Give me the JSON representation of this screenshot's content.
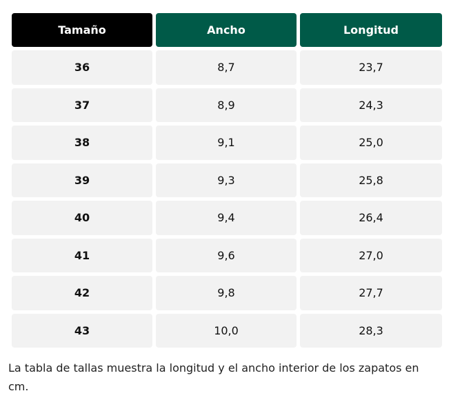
{
  "table": {
    "header": [
      "Tamaño",
      "Ancho",
      "Longitud"
    ],
    "rows": [
      [
        "36",
        "8,7",
        "23,7"
      ],
      [
        "37",
        "8,9",
        "24,3"
      ],
      [
        "38",
        "9,1",
        "25,0"
      ],
      [
        "39",
        "9,3",
        "25,8"
      ],
      [
        "40",
        "9,4",
        "26,4"
      ],
      [
        "41",
        "9,6",
        "27,0"
      ],
      [
        "42",
        "9,8",
        "27,7"
      ],
      [
        "43",
        "10,0",
        "28,3"
      ]
    ]
  },
  "caption": "La tabla de tallas muestra la longitud y el ancho interior de los zapatos en cm."
}
